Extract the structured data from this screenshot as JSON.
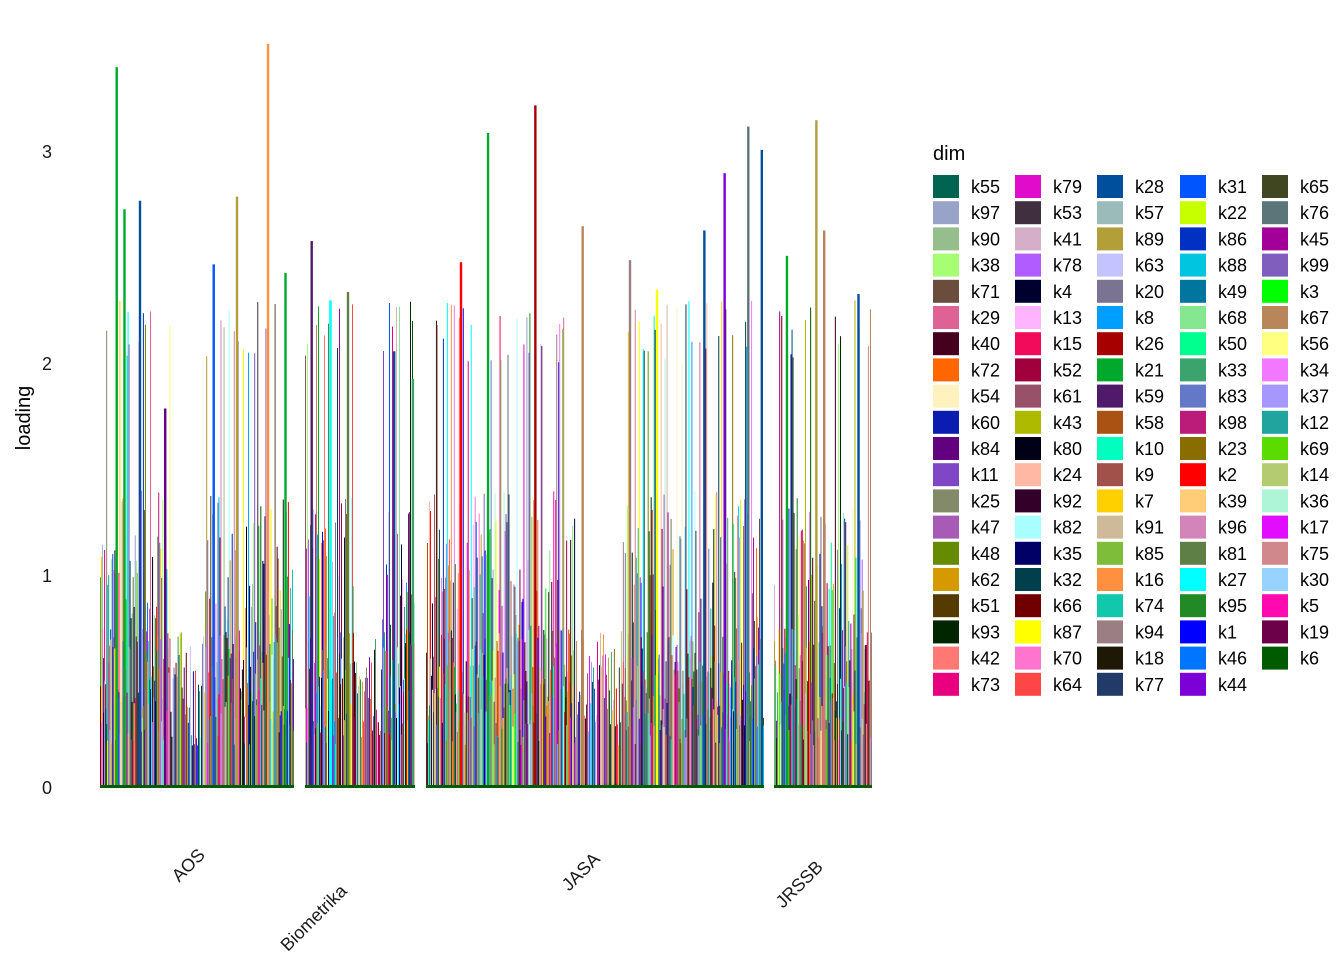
{
  "chart_data": {
    "type": "bar",
    "title": "",
    "xlabel": "",
    "ylabel": "loading",
    "ylim": [
      0,
      3.5
    ],
    "yticks": [
      0,
      1,
      2,
      3
    ],
    "grid": false,
    "legend_placement": "right",
    "legend_title": "dim",
    "categories": [
      "AOS",
      "Biometrika",
      "JASA",
      "JRSSB"
    ],
    "category_bar_counts": [
      190,
      110,
      340,
      95
    ],
    "category_peaks": [
      [
        {
          "pos": 0.08,
          "v": 3.4,
          "dim": "k21"
        },
        {
          "pos": 0.12,
          "v": 2.73,
          "dim": "k21"
        },
        {
          "pos": 0.2,
          "v": 2.77,
          "dim": "k28"
        },
        {
          "pos": 0.33,
          "v": 1.79,
          "dim": "k84"
        },
        {
          "pos": 0.58,
          "v": 2.47,
          "dim": "k31"
        },
        {
          "pos": 0.7,
          "v": 2.79,
          "dim": "k89"
        },
        {
          "pos": 0.86,
          "v": 3.51,
          "dim": "k16"
        },
        {
          "pos": 0.95,
          "v": 2.43,
          "dim": "k21"
        }
      ],
      [
        {
          "pos": 0.05,
          "v": 2.58,
          "dim": "k59"
        },
        {
          "pos": 0.22,
          "v": 2.3,
          "dim": "k27"
        },
        {
          "pos": 0.38,
          "v": 2.34,
          "dim": "k81"
        },
        {
          "pos": 0.8,
          "v": 2.06,
          "dim": "k28"
        },
        {
          "pos": 0.97,
          "v": 1.93,
          "dim": "k33"
        }
      ],
      [
        {
          "pos": 0.1,
          "v": 2.48,
          "dim": "k2"
        },
        {
          "pos": 0.18,
          "v": 3.09,
          "dim": "k21"
        },
        {
          "pos": 0.32,
          "v": 3.22,
          "dim": "k26"
        },
        {
          "pos": 0.46,
          "v": 2.65,
          "dim": "k67"
        },
        {
          "pos": 0.6,
          "v": 2.49,
          "dim": "k94"
        },
        {
          "pos": 0.68,
          "v": 2.35,
          "dim": "k87"
        },
        {
          "pos": 0.82,
          "v": 2.63,
          "dim": "k28"
        },
        {
          "pos": 0.88,
          "v": 2.9,
          "dim": "k44"
        },
        {
          "pos": 0.95,
          "v": 3.12,
          "dim": "k76"
        },
        {
          "pos": 0.99,
          "v": 3.01,
          "dim": "k28"
        }
      ],
      [
        {
          "pos": 0.12,
          "v": 2.51,
          "dim": "k21"
        },
        {
          "pos": 0.42,
          "v": 3.15,
          "dim": "k89"
        },
        {
          "pos": 0.5,
          "v": 2.63,
          "dim": "k67"
        },
        {
          "pos": 0.85,
          "v": 2.33,
          "dim": "k28"
        }
      ]
    ],
    "series": [
      {
        "name": "k55",
        "color": "#006450"
      },
      {
        "name": "k97",
        "color": "#98A3C8"
      },
      {
        "name": "k90",
        "color": "#96BE8C"
      },
      {
        "name": "k38",
        "color": "#A6FF72"
      },
      {
        "name": "k71",
        "color": "#6B4D3E"
      },
      {
        "name": "k29",
        "color": "#DE6296"
      },
      {
        "name": "k40",
        "color": "#44001C"
      },
      {
        "name": "k72",
        "color": "#FF6600"
      },
      {
        "name": "k54",
        "color": "#FFF2BF"
      },
      {
        "name": "k60",
        "color": "#0A1DB0"
      },
      {
        "name": "k84",
        "color": "#62007F"
      },
      {
        "name": "k11",
        "color": "#7F46C6"
      },
      {
        "name": "k25",
        "color": "#828A6A"
      },
      {
        "name": "k47",
        "color": "#A85BB4"
      },
      {
        "name": "k48",
        "color": "#668A00"
      },
      {
        "name": "k62",
        "color": "#D49A00"
      },
      {
        "name": "k51",
        "color": "#563B00"
      },
      {
        "name": "k93",
        "color": "#002600"
      },
      {
        "name": "k42",
        "color": "#FF7873"
      },
      {
        "name": "k73",
        "color": "#E8007E"
      },
      {
        "name": "k79",
        "color": "#E00BCB"
      },
      {
        "name": "k53",
        "color": "#402F3E"
      },
      {
        "name": "k41",
        "color": "#D5AFC8"
      },
      {
        "name": "k78",
        "color": "#B15CFF"
      },
      {
        "name": "k4",
        "color": "#00002E"
      },
      {
        "name": "k13",
        "color": "#FFB4FF"
      },
      {
        "name": "k15",
        "color": "#F20A5B"
      },
      {
        "name": "k52",
        "color": "#A0003C"
      },
      {
        "name": "k61",
        "color": "#975168"
      },
      {
        "name": "k43",
        "color": "#AEBA00"
      },
      {
        "name": "k80",
        "color": "#000016"
      },
      {
        "name": "k24",
        "color": "#FFB8A3"
      },
      {
        "name": "k92",
        "color": "#320029"
      },
      {
        "name": "k82",
        "color": "#A8FFFF"
      },
      {
        "name": "k35",
        "color": "#000066"
      },
      {
        "name": "k32",
        "color": "#003F4B"
      },
      {
        "name": "k66",
        "color": "#700000"
      },
      {
        "name": "k87",
        "color": "#FFFF00"
      },
      {
        "name": "k70",
        "color": "#FF74CE"
      },
      {
        "name": "k64",
        "color": "#FF4646"
      },
      {
        "name": "k28",
        "color": "#004F9C"
      },
      {
        "name": "k57",
        "color": "#9ABBB9"
      },
      {
        "name": "k89",
        "color": "#B39F3A"
      },
      {
        "name": "k63",
        "color": "#C4C2FF"
      },
      {
        "name": "k20",
        "color": "#7A7392"
      },
      {
        "name": "k8",
        "color": "#009FFF"
      },
      {
        "name": "k26",
        "color": "#A70000"
      },
      {
        "name": "k21",
        "color": "#00A82C"
      },
      {
        "name": "k59",
        "color": "#4F1A6A"
      },
      {
        "name": "k58",
        "color": "#AA5214"
      },
      {
        "name": "k10",
        "color": "#00FFBF"
      },
      {
        "name": "k9",
        "color": "#A2504A"
      },
      {
        "name": "k7",
        "color": "#FFD000"
      },
      {
        "name": "k91",
        "color": "#CEBA99"
      },
      {
        "name": "k85",
        "color": "#7DBD3A"
      },
      {
        "name": "k16",
        "color": "#FF9040"
      },
      {
        "name": "k74",
        "color": "#11C8AC"
      },
      {
        "name": "k94",
        "color": "#9A7E84"
      },
      {
        "name": "k18",
        "color": "#1E1806"
      },
      {
        "name": "k77",
        "color": "#213A67"
      },
      {
        "name": "k31",
        "color": "#0055FF"
      },
      {
        "name": "k22",
        "color": "#C8FF00"
      },
      {
        "name": "k86",
        "color": "#0031C2"
      },
      {
        "name": "k88",
        "color": "#00C5E0"
      },
      {
        "name": "k49",
        "color": "#00769F"
      },
      {
        "name": "k68",
        "color": "#86E791"
      },
      {
        "name": "k50",
        "color": "#00FF8E"
      },
      {
        "name": "k33",
        "color": "#3BA46D"
      },
      {
        "name": "k83",
        "color": "#6478C8"
      },
      {
        "name": "k98",
        "color": "#BB1C7A"
      },
      {
        "name": "k23",
        "color": "#8A6D00"
      },
      {
        "name": "k2",
        "color": "#FF0000"
      },
      {
        "name": "k39",
        "color": "#FFCC77"
      },
      {
        "name": "k96",
        "color": "#D385B9"
      },
      {
        "name": "k81",
        "color": "#5E7F45"
      },
      {
        "name": "k27",
        "color": "#00FFFF"
      },
      {
        "name": "k95",
        "color": "#218A27"
      },
      {
        "name": "k1",
        "color": "#0000FF"
      },
      {
        "name": "k46",
        "color": "#0075FF"
      },
      {
        "name": "k44",
        "color": "#7C00D8"
      },
      {
        "name": "k65",
        "color": "#3F4620"
      },
      {
        "name": "k76",
        "color": "#5C7579"
      },
      {
        "name": "k45",
        "color": "#A3009A"
      },
      {
        "name": "k99",
        "color": "#7F5EBE"
      },
      {
        "name": "k3",
        "color": "#00FF00"
      },
      {
        "name": "k67",
        "color": "#B8865A"
      },
      {
        "name": "k56",
        "color": "#FFFF80"
      },
      {
        "name": "k34",
        "color": "#F178FF"
      },
      {
        "name": "k37",
        "color": "#A697FF"
      },
      {
        "name": "k12",
        "color": "#21A39E"
      },
      {
        "name": "k69",
        "color": "#5BDC00"
      },
      {
        "name": "k14",
        "color": "#B5CB72"
      },
      {
        "name": "k36",
        "color": "#AEF4D6"
      },
      {
        "name": "k17",
        "color": "#E20CFF"
      },
      {
        "name": "k75",
        "color": "#D0888C"
      },
      {
        "name": "k30",
        "color": "#98D2FF"
      },
      {
        "name": "k5",
        "color": "#FF0AAE"
      },
      {
        "name": "k19",
        "color": "#6C0049"
      },
      {
        "name": "k6",
        "color": "#005B00"
      }
    ]
  }
}
